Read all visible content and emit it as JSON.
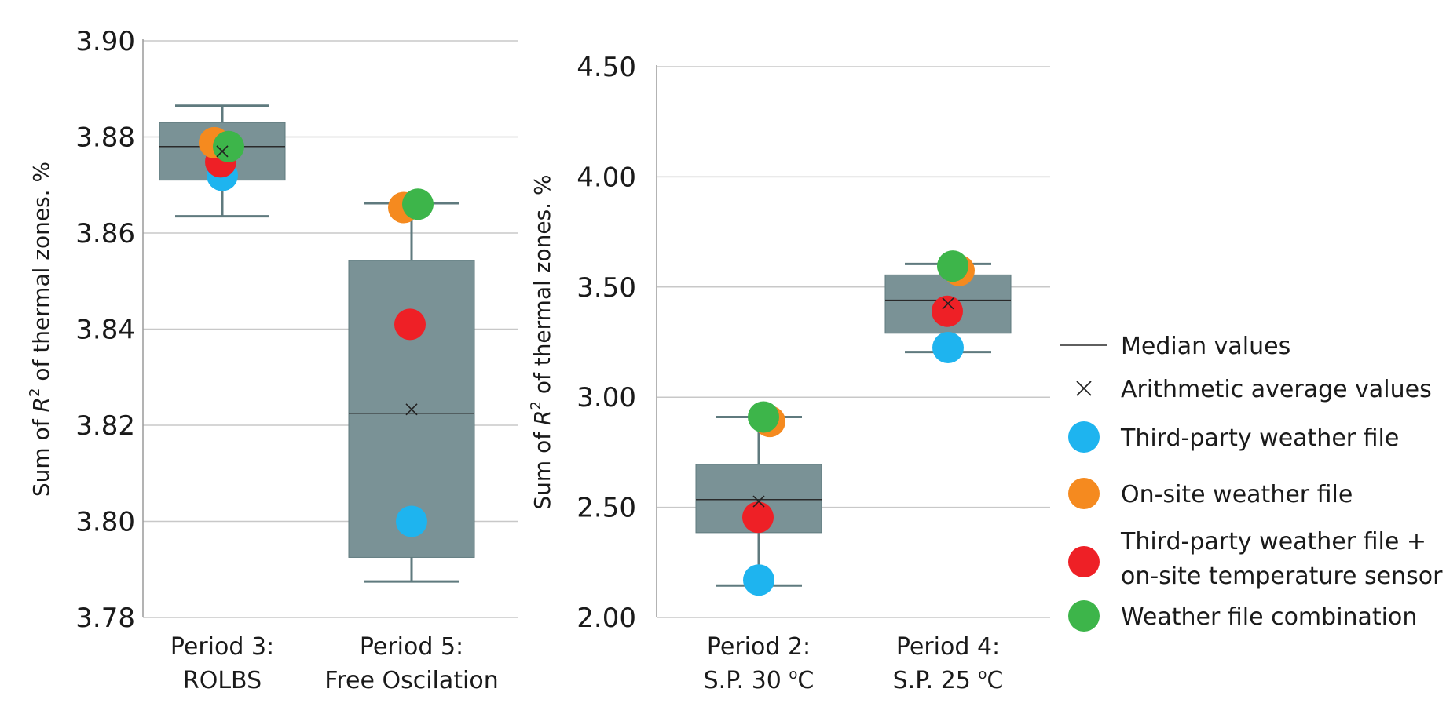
{
  "chart_data": [
    {
      "type": "box",
      "ylabel_prefix": "Sum of ",
      "ylabel_var": "R",
      "ylabel_sup": "2",
      "ylabel_suffix": " of thermal zones. %",
      "ylim": [
        3.78,
        3.9
      ],
      "yticks": [
        3.78,
        3.8,
        3.82,
        3.84,
        3.86,
        3.88,
        3.9
      ],
      "tick_decimals": 2,
      "grid": true,
      "boxes": [
        {
          "label_lines": [
            "Period 3:",
            "ROLBS"
          ],
          "whisker_low": 3.8635,
          "q1": 3.871,
          "median": 3.878,
          "q3": 3.883,
          "whisker_high": 3.8865,
          "mean": 3.877,
          "points": {
            "third_party": 3.872,
            "on_site": 3.8788,
            "third_party_sensor": 3.8748,
            "combination": 3.878
          }
        },
        {
          "label_lines": [
            "Period 5:",
            "Free Oscilation"
          ],
          "whisker_low": 3.7875,
          "q1": 3.7925,
          "median": 3.8225,
          "q3": 3.8543,
          "whisker_high": 3.8662,
          "mean": 3.8233,
          "points": {
            "third_party": 3.8,
            "on_site": 3.8653,
            "third_party_sensor": 3.841,
            "combination": 3.866
          }
        }
      ]
    },
    {
      "type": "box",
      "ylabel_prefix": "Sum of ",
      "ylabel_var": "R",
      "ylabel_sup": "2",
      "ylabel_suffix": " of thermal zones. %",
      "ylim": [
        2.0,
        4.5
      ],
      "yticks": [
        2.0,
        2.5,
        3.0,
        3.5,
        4.0,
        4.5
      ],
      "tick_decimals": 2,
      "grid": true,
      "boxes": [
        {
          "label_lines": [
            "Period 2:",
            "S.P. 30 ",
            "o",
            "C"
          ],
          "whisker_low": 2.145,
          "q1": 2.385,
          "median": 2.535,
          "q3": 2.695,
          "whisker_high": 2.91,
          "mean": 2.527,
          "points": {
            "third_party": 2.17,
            "on_site": 2.89,
            "third_party_sensor": 2.455,
            "combination": 2.91
          }
        },
        {
          "label_lines": [
            "Period 4:",
            "S.P. 25 ",
            "o",
            "C"
          ],
          "whisker_low": 3.205,
          "q1": 3.29,
          "median": 3.44,
          "q3": 3.555,
          "whisker_high": 3.605,
          "mean": 3.425,
          "points": {
            "third_party": 3.225,
            "on_site": 3.575,
            "third_party_sensor": 3.39,
            "combination": 3.595
          }
        }
      ]
    }
  ],
  "legend": {
    "median": "Median values",
    "mean": "Arithmetic average values",
    "third_party": "Third-party weather file",
    "on_site": "On-site weather file",
    "third_party_sensor_line1": "Third-party weather file +",
    "third_party_sensor_line2": "on-site temperature sensor",
    "combination": "Weather file combination"
  },
  "colors": {
    "box_fill": "#7a9296",
    "box_stroke": "#5f7a7e",
    "grid": "#c8c8c8",
    "axis": "#9a9a9a",
    "third_party": "#1eb4ef",
    "on_site": "#f58a1f",
    "third_party_sensor": "#ee2026",
    "combination": "#3db54a"
  }
}
